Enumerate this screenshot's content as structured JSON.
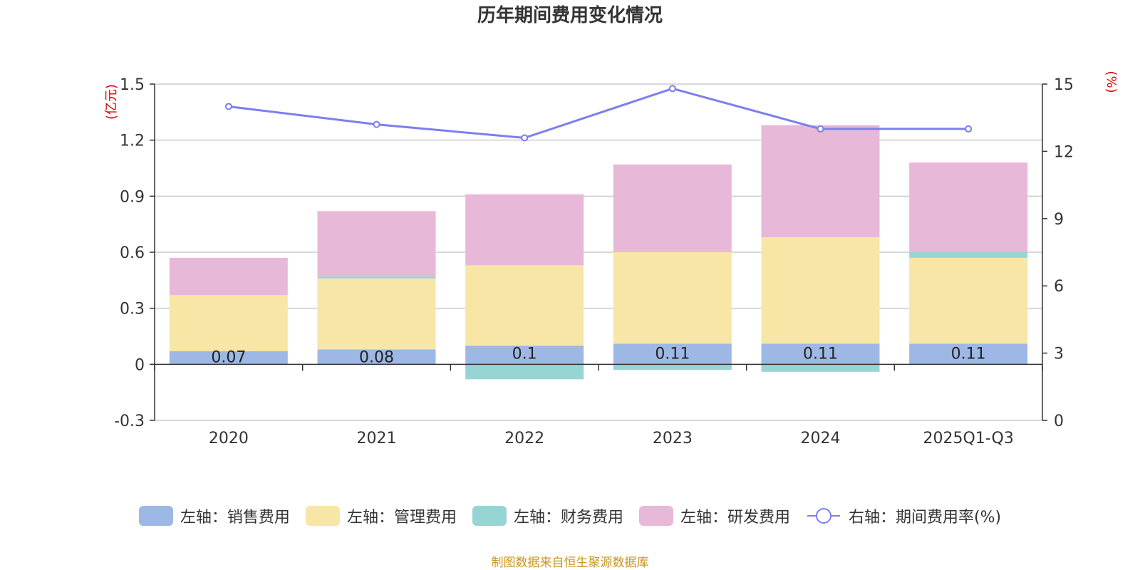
{
  "colors": {
    "sales": "#9db8e4",
    "admin": "#f8e6a7",
    "finance": "#97d5d5",
    "rnd": "#e8b8d9",
    "rate": "#7b7ff0",
    "axis_left_unit": "#e00000",
    "source": "#c8961e"
  },
  "chart_data": {
    "type": "bar",
    "title": "历年期间费用变化情况",
    "categories": [
      "2020",
      "2021",
      "2022",
      "2023",
      "2024",
      "2025Q1-Q3"
    ],
    "left_axis": {
      "unit": "(亿元)",
      "ylim": [
        -0.3,
        1.5
      ],
      "ticks": [
        -0.3,
        0,
        0.3,
        0.6,
        0.9,
        1.2,
        1.5
      ],
      "tick_labels": [
        "-0.3",
        "0",
        "0.3",
        "0.6",
        "0.9",
        "1.2",
        "1.5"
      ]
    },
    "right_axis": {
      "unit": "(%)",
      "ylim": [
        0,
        15
      ],
      "ticks": [
        0,
        3,
        6,
        9,
        12,
        15
      ],
      "tick_labels": [
        "0",
        "3",
        "6",
        "9",
        "12",
        "15"
      ]
    },
    "series": [
      {
        "key": "sales",
        "name": "左轴：销售费用",
        "type": "bar",
        "axis": "left",
        "values": [
          0.07,
          0.08,
          0.1,
          0.11,
          0.11,
          0.11
        ],
        "labels": [
          "0.07",
          "0.08",
          "0.1",
          "0.11",
          "0.11",
          "0.11"
        ]
      },
      {
        "key": "admin",
        "name": "左轴：管理费用",
        "type": "bar",
        "axis": "left",
        "values": [
          0.3,
          0.38,
          0.43,
          0.49,
          0.57,
          0.46
        ]
      },
      {
        "key": "finance",
        "name": "左轴：财务费用",
        "type": "bar",
        "axis": "left",
        "values": [
          0.0,
          0.01,
          -0.08,
          -0.03,
          -0.04,
          0.03
        ]
      },
      {
        "key": "rnd",
        "name": "左轴：研发费用",
        "type": "bar",
        "axis": "left",
        "values": [
          0.2,
          0.35,
          0.38,
          0.47,
          0.6,
          0.48
        ]
      },
      {
        "key": "rate",
        "name": "右轴：期间费用率(%)",
        "type": "line",
        "axis": "right",
        "values": [
          14.0,
          13.2,
          12.6,
          14.8,
          13.0,
          13.0
        ]
      }
    ],
    "legend_position": "bottom"
  },
  "source_note": "制图数据来自恒生聚源数据库"
}
